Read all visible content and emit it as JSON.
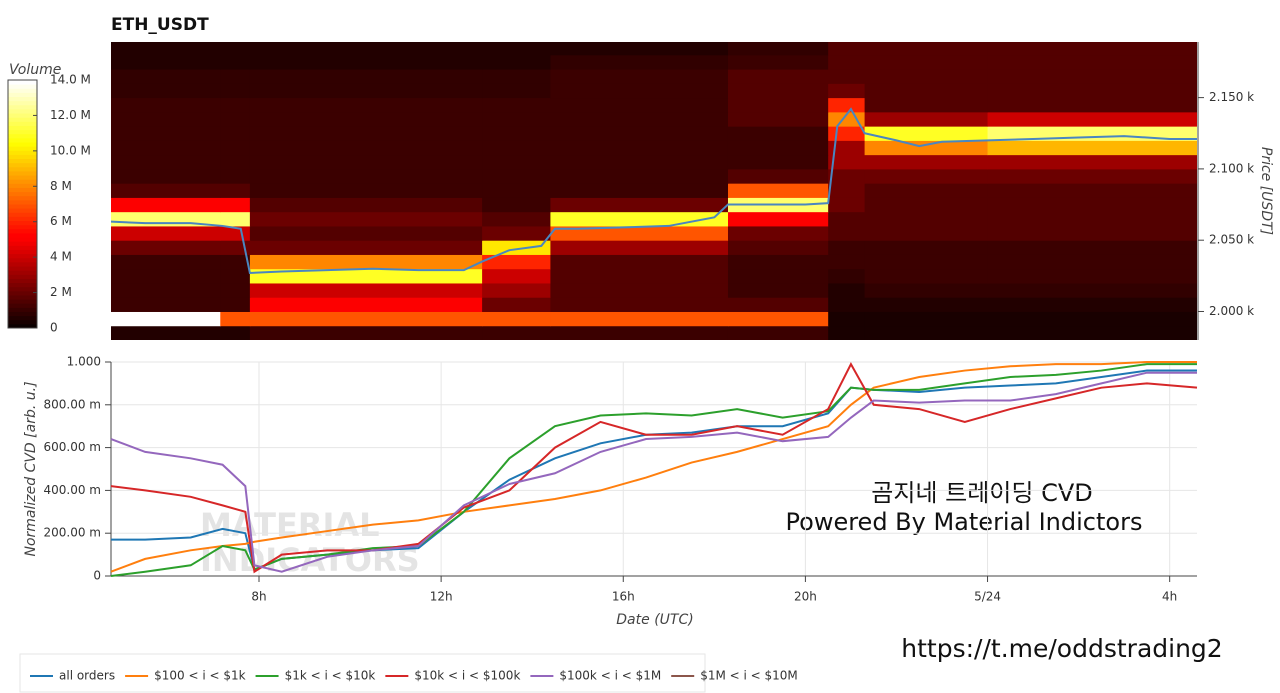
{
  "chart_data": [
    {
      "type": "heatmap",
      "title": "ETH_USDT",
      "ylabel": "Price [USDT]",
      "colormap": "hot",
      "xlim": [
        4.75,
        28.6
      ],
      "ylim": [
        1980,
        2189
      ],
      "yticks": [
        {
          "value": 2000,
          "label": "2.000 k"
        },
        {
          "value": 2050,
          "label": "2.050 k"
        },
        {
          "value": 2100,
          "label": "2.100 k"
        },
        {
          "value": 2150,
          "label": "2.150 k"
        }
      ],
      "x_edges": [
        4.75,
        7.15,
        7.8,
        12.9,
        14.4,
        18.3,
        20.5,
        21.3,
        24,
        28.6
      ],
      "y_edges": [
        1980,
        1990,
        2000,
        2010,
        2020,
        2030,
        2040,
        2050,
        2060,
        2070,
        2080,
        2090,
        2100,
        2110,
        2120,
        2130,
        2140,
        2150,
        2160,
        2170,
        2180,
        2190
      ],
      "z": [
        [
          0.5,
          0.5,
          1,
          1,
          1,
          1,
          0.3,
          0.3,
          0.3
        ],
        [
          14,
          7,
          7,
          7,
          7,
          7,
          0.3,
          0.3,
          0.3
        ],
        [
          1,
          1,
          5,
          2,
          1.5,
          1.5,
          0.5,
          0.5,
          0.5
        ],
        [
          1,
          1,
          4,
          3,
          1.5,
          1,
          0.5,
          0.8,
          0.8
        ],
        [
          1,
          1,
          11,
          4,
          1.5,
          1,
          0.8,
          1,
          1
        ],
        [
          1,
          1,
          8,
          6,
          1.5,
          1,
          1,
          1,
          1
        ],
        [
          2,
          2,
          2,
          10,
          3,
          1.5,
          1,
          1,
          1
        ],
        [
          4,
          4,
          1.5,
          2,
          7,
          2,
          1.5,
          1.5,
          1.5
        ],
        [
          12,
          12,
          2,
          1.5,
          11,
          5,
          1.5,
          1.5,
          1.5
        ],
        [
          5,
          5,
          1.5,
          1,
          2,
          12,
          2,
          1.5,
          1.5
        ],
        [
          1.5,
          1.5,
          1,
          1,
          1,
          7,
          2,
          1.5,
          1.5
        ],
        [
          1,
          1,
          1,
          1,
          1,
          1.5,
          2,
          2,
          2
        ],
        [
          1,
          1,
          1,
          1,
          1,
          1,
          3,
          3,
          3
        ],
        [
          1,
          1,
          1,
          1,
          1,
          1,
          3,
          8,
          9
        ],
        [
          1,
          1,
          1,
          1,
          1,
          1,
          6,
          11,
          12
        ],
        [
          1,
          1,
          1,
          1,
          1,
          1.5,
          8,
          3,
          4
        ],
        [
          1,
          1,
          1,
          1,
          1,
          1.5,
          6,
          1.5,
          1.5
        ],
        [
          0.8,
          0.8,
          0.8,
          0.8,
          1,
          1.5,
          2,
          1.5,
          1.5
        ],
        [
          0.8,
          0.8,
          0.8,
          0.8,
          1,
          1.5,
          1.5,
          1.5,
          1.5
        ],
        [
          0.5,
          0.5,
          0.5,
          0.5,
          0.8,
          1,
          1.5,
          1.5,
          1.5
        ],
        [
          0.5,
          0.5,
          0.5,
          0.5,
          0.5,
          0.8,
          1.5,
          1.5,
          1.5
        ]
      ],
      "colorbar": {
        "label": "Volume",
        "range": [
          0,
          14
        ],
        "ticks": [
          0,
          {
            "value": 2,
            "label": "2 M"
          },
          {
            "value": 4,
            "label": "4 M"
          },
          {
            "value": 6,
            "label": "6 M"
          },
          {
            "value": 8,
            "label": "8 M"
          },
          {
            "value": 10,
            "label": "10.0 M"
          },
          {
            "value": 12,
            "label": "12.0 M"
          },
          {
            "value": 14,
            "label": "14.0 M"
          }
        ]
      },
      "price_line": {
        "color": "#4a86c0",
        "x": [
          4.75,
          5.5,
          6.5,
          7.2,
          7.6,
          7.8,
          8.5,
          9.5,
          10.5,
          11.5,
          12.5,
          12.9,
          13.5,
          14.2,
          14.5,
          15,
          16,
          17,
          18,
          18.3,
          19,
          20,
          20.5,
          20.7,
          21,
          21.3,
          22,
          22.5,
          23,
          24,
          25,
          26,
          27,
          28,
          28.6
        ],
        "values": [
          2063,
          2062,
          2062,
          2060,
          2058,
          2027,
          2028,
          2029,
          2030,
          2029,
          2029,
          2035,
          2043,
          2046,
          2058,
          2058,
          2059,
          2060,
          2066,
          2075,
          2075,
          2075,
          2076,
          2130,
          2142,
          2125,
          2120,
          2116,
          2119,
          2120,
          2121,
          2122,
          2123,
          2121,
          2121
        ]
      }
    },
    {
      "type": "line",
      "xlabel": "Date (UTC)",
      "ylabel": "Normalized CVD [arb. u.]",
      "grid": true,
      "legend": "bottom-left",
      "xlim": [
        4.75,
        28.6
      ],
      "xticks": [
        {
          "value": 8,
          "label": "8h"
        },
        {
          "value": 12,
          "label": "12h"
        },
        {
          "value": 16,
          "label": "16h"
        },
        {
          "value": 20,
          "label": "20h"
        },
        {
          "value": 24,
          "label": "5/24"
        },
        {
          "value": 28,
          "label": "4h"
        }
      ],
      "ylim": [
        0,
        1
      ],
      "yticks": [
        0,
        {
          "value": 0.2,
          "label": "200.00 m"
        },
        {
          "value": 0.4,
          "label": "400.00 m"
        },
        {
          "value": 0.6,
          "label": "600.00 m"
        },
        {
          "value": 0.8,
          "label": "800.00 m"
        },
        {
          "value": 1,
          "label": "1.000"
        }
      ],
      "x": [
        4.75,
        5.5,
        6.5,
        7.2,
        7.7,
        7.9,
        8.5,
        9.5,
        10.5,
        11.5,
        12.5,
        13.5,
        14.5,
        15.5,
        16.5,
        17.5,
        18.5,
        19.5,
        20.5,
        21,
        21.5,
        22.5,
        23.5,
        24.5,
        25.5,
        26.5,
        27.5,
        28.6
      ],
      "series": [
        {
          "name": "all orders",
          "color": "#1f77b4",
          "values": [
            0.17,
            0.17,
            0.18,
            0.22,
            0.2,
            0.03,
            0.08,
            0.1,
            0.12,
            0.13,
            0.3,
            0.45,
            0.55,
            0.62,
            0.66,
            0.67,
            0.7,
            0.7,
            0.76,
            0.88,
            0.87,
            0.86,
            0.88,
            0.89,
            0.9,
            0.93,
            0.96,
            0.96
          ]
        },
        {
          "name": "$100 < i < $1k",
          "color": "#ff7f0e",
          "values": [
            0.02,
            0.08,
            0.12,
            0.14,
            0.15,
            0.16,
            0.18,
            0.21,
            0.24,
            0.26,
            0.3,
            0.33,
            0.36,
            0.4,
            0.46,
            0.53,
            0.58,
            0.64,
            0.7,
            0.8,
            0.88,
            0.93,
            0.96,
            0.98,
            0.99,
            0.99,
            1,
            1
          ]
        },
        {
          "name": "$1k < i < $10k",
          "color": "#2ca02c",
          "values": [
            0,
            0.02,
            0.05,
            0.14,
            0.12,
            0.03,
            0.08,
            0.1,
            0.13,
            0.14,
            0.3,
            0.55,
            0.7,
            0.75,
            0.76,
            0.75,
            0.78,
            0.74,
            0.77,
            0.88,
            0.87,
            0.87,
            0.9,
            0.93,
            0.94,
            0.96,
            0.99,
            0.99
          ]
        },
        {
          "name": "$10k < i < $100k",
          "color": "#d62728",
          "values": [
            0.42,
            0.4,
            0.37,
            0.33,
            0.3,
            0.02,
            0.1,
            0.12,
            0.12,
            0.15,
            0.32,
            0.4,
            0.6,
            0.72,
            0.66,
            0.66,
            0.7,
            0.66,
            0.78,
            0.99,
            0.8,
            0.78,
            0.72,
            0.78,
            0.83,
            0.88,
            0.9,
            0.88
          ]
        },
        {
          "name": "$100k < i < $1M",
          "color": "#9467bd",
          "values": [
            0.64,
            0.58,
            0.55,
            0.52,
            0.42,
            0.05,
            0.02,
            0.09,
            0.12,
            0.14,
            0.33,
            0.43,
            0.48,
            0.58,
            0.64,
            0.65,
            0.67,
            0.63,
            0.65,
            0.74,
            0.82,
            0.81,
            0.82,
            0.82,
            0.85,
            0.9,
            0.95,
            0.95
          ]
        },
        {
          "name": "$1M < i < $10M",
          "color": "#8c564b"
        }
      ],
      "watermark": [
        "MATERIAL",
        "INDICATORS"
      ],
      "annotations": [
        "곰지네 트레이딩 CVD",
        "Powered By Material Indictors",
        "https://t.me/oddstrading2"
      ]
    }
  ]
}
